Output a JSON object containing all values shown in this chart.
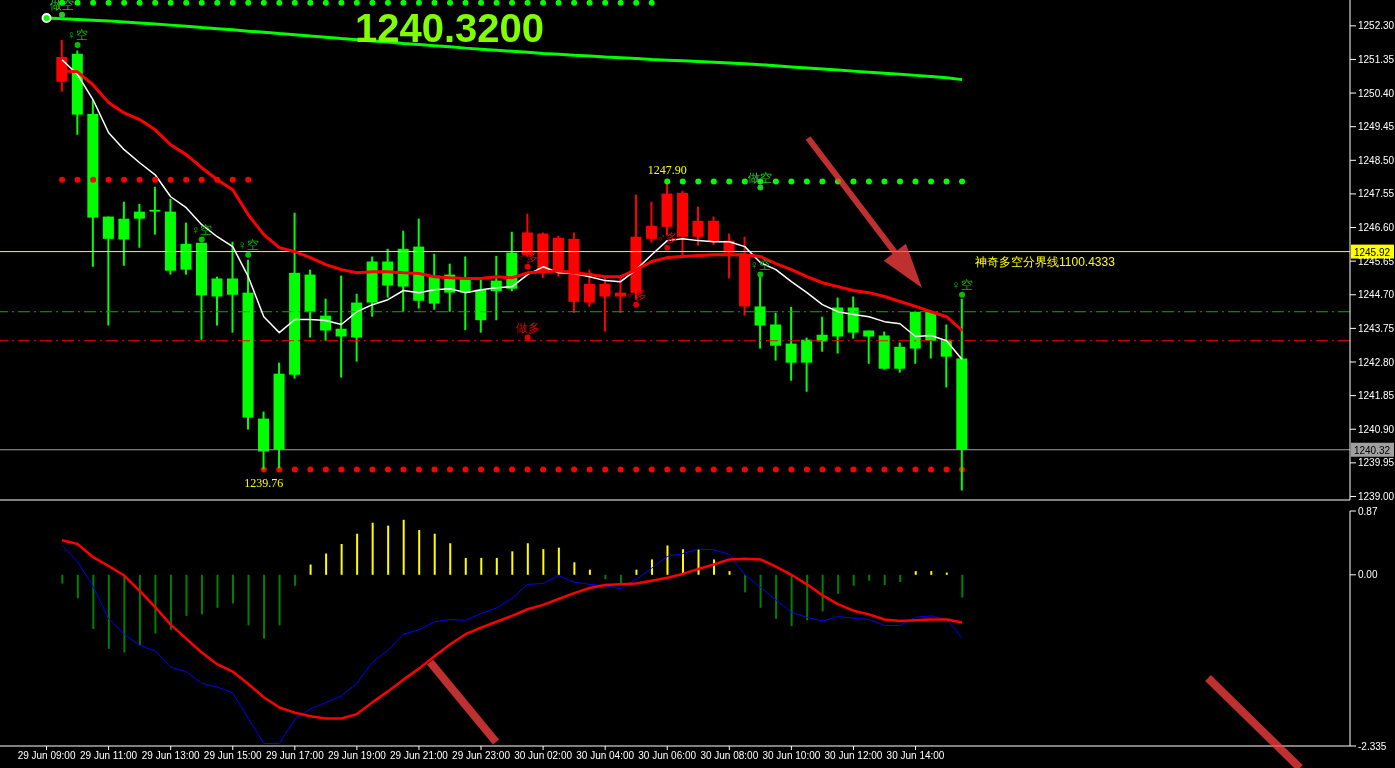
{
  "chart_data": [
    {
      "type": "candlestick",
      "title": "1240.3200",
      "categories": [
        null,
        null,
        null,
        null,
        null,
        null,
        null,
        null,
        null,
        null,
        null,
        null,
        null,
        null,
        null,
        null,
        null,
        null,
        null,
        null,
        null,
        null,
        null,
        null,
        null,
        null,
        null,
        null,
        null,
        null,
        null,
        null,
        null,
        null,
        null,
        null,
        null,
        null,
        null,
        null,
        null,
        null,
        null,
        null,
        null,
        null,
        null,
        null,
        null,
        null,
        null,
        null,
        null,
        null,
        null,
        null,
        null,
        null,
        null,
        null
      ],
      "ohlc": [
        null,
        [
          1250.72,
          1251.9,
          1250.44,
          1251.42
        ],
        [
          1251.51,
          1251.6,
          1249.22,
          1249.79
        ],
        [
          1249.81,
          1250.21,
          1245.49,
          1246.88
        ],
        [
          1246.91,
          1246.91,
          1243.83,
          1246.28
        ],
        [
          1246.85,
          1247.33,
          1245.52,
          1246.26
        ],
        [
          1247.05,
          1247.27,
          1246.03,
          1246.85
        ],
        [
          1247.1,
          1247.75,
          1246.4,
          1247.05
        ],
        [
          1247.05,
          1247.41,
          1245.27,
          1245.38
        ],
        [
          1246.14,
          1246.74,
          1245.27,
          1245.41
        ],
        [
          1246.17,
          1246.17,
          1243.43,
          1244.68
        ],
        [
          1245.16,
          1245.21,
          1243.83,
          1244.65
        ],
        [
          1245.16,
          1246.2,
          1243.63,
          1244.7
        ],
        [
          1244.76,
          1245.69,
          1240.89,
          1241.23
        ],
        [
          1241.2,
          1241.4,
          1239.76,
          1240.27
        ],
        [
          1242.47,
          1242.78,
          1239.8,
          1240.33
        ],
        [
          1245.32,
          1247.02,
          1242.33,
          1242.44
        ],
        [
          1245.27,
          1245.41,
          1243.49,
          1244.22
        ],
        [
          1244.11,
          1244.59,
          1243.4,
          1243.69
        ],
        [
          1243.74,
          1245.24,
          1242.36,
          1243.52
        ],
        [
          1244.48,
          1244.73,
          1242.81,
          1243.49
        ],
        [
          1245.64,
          1245.78,
          1244.08,
          1244.48
        ],
        [
          1245.64,
          1246.0,
          1244.62,
          1244.96
        ],
        [
          1246.0,
          1246.51,
          1244.22,
          1244.93
        ],
        [
          1246.06,
          1246.85,
          1244.31,
          1244.53
        ],
        [
          1245.24,
          1245.86,
          1244.28,
          1244.45
        ],
        [
          1245.27,
          1245.58,
          1244.22,
          1244.76
        ],
        [
          1245.18,
          1245.78,
          1243.7,
          1244.76
        ],
        [
          1244.84,
          1245.13,
          1243.63,
          1243.98
        ],
        [
          1245.1,
          1245.8,
          1243.98,
          1244.8
        ],
        [
          1245.89,
          1246.48,
          1244.8,
          1244.87
        ],
        [
          1245.83,
          1246.99,
          1245.78,
          1246.46
        ],
        [
          1245.32,
          1246.46,
          1245.18,
          1246.43
        ],
        [
          1245.35,
          1246.37,
          1245.21,
          1246.31
        ],
        [
          1244.5,
          1246.46,
          1244.19,
          1246.28
        ],
        [
          1244.48,
          1245.41,
          1244.36,
          1245.01
        ],
        [
          1244.65,
          1245.24,
          1243.66,
          1245.01
        ],
        [
          1244.65,
          1245.21,
          1244.19,
          1244.76
        ],
        [
          1244.76,
          1247.53,
          1244.56,
          1246.34
        ],
        [
          1246.28,
          1247.33,
          1246.17,
          1246.65
        ],
        [
          1246.62,
          1247.9,
          1246.37,
          1247.56
        ],
        [
          1246.34,
          1247.64,
          1245.78,
          1247.58
        ],
        [
          1246.34,
          1247.19,
          1246.09,
          1246.79
        ],
        [
          1246.2,
          1246.91,
          1246.11,
          1246.79
        ],
        [
          1245.89,
          1246.43,
          1245.16,
          1246.23
        ],
        [
          1244.37,
          1246.34,
          1244.11,
          1245.83
        ],
        [
          1244.37,
          1245.27,
          1243.18,
          1243.83
        ],
        [
          1243.86,
          1244.19,
          1242.84,
          1243.26
        ],
        [
          1243.32,
          1244.36,
          1242.27,
          1242.78
        ],
        [
          1243.43,
          1243.49,
          1241.96,
          1242.78
        ],
        [
          1243.57,
          1244.08,
          1243.09,
          1243.38
        ],
        [
          1244.34,
          1244.62,
          1243.04,
          1243.52
        ],
        [
          1244.34,
          1244.65,
          1243.46,
          1243.63
        ],
        [
          1243.69,
          1243.69,
          1242.75,
          1243.52
        ],
        [
          1243.55,
          1243.66,
          1242.59,
          1242.61
        ],
        [
          1243.23,
          1243.35,
          1242.5,
          1242.61
        ],
        [
          1244.22,
          1244.22,
          1242.75,
          1243.18
        ],
        [
          1244.22,
          1244.25,
          1242.9,
          1243.4
        ],
        [
          1243.43,
          1243.86,
          1242.08,
          1242.95
        ],
        [
          1242.9,
          1244.59,
          1239.17,
          1240.32
        ]
      ],
      "colors": [
        null,
        "#ff0000",
        "#00ff00",
        "#00ff00",
        "#00ff00",
        "#00ff00",
        "#00ff00",
        "#00ff00",
        "#00ff00",
        "#00ff00",
        "#00ff00",
        "#00ff00",
        "#00ff00",
        "#00ff00",
        "#00ff00",
        "#00ff00",
        "#00ff00",
        "#00ff00",
        "#00ff00",
        "#00ff00",
        "#00ff00",
        "#00ff00",
        "#00ff00",
        "#00ff00",
        "#00ff00",
        "#00ff00",
        "#00ff00",
        "#00ff00",
        "#00ff00",
        "#00ff00",
        "#00ff00",
        "#ff0000",
        "#ff0000",
        "#ff0000",
        "#ff0000",
        "#ff0000",
        "#ff0000",
        "#ff0000",
        "#ff0000",
        "#ff0000",
        "#ff0000",
        "#ff0000",
        "#ff0000",
        "#ff0000",
        "#ff0000",
        "#ff0000",
        "#00ff00",
        "#00ff00",
        "#00ff00",
        "#00ff00",
        "#00ff00",
        "#00ff00",
        "#00ff00",
        "#00ff00",
        "#00ff00",
        "#00ff00",
        "#00ff00",
        "#00ff00",
        "#00ff00",
        "#00ff00"
      ],
      "series": [
        {
          "type": "line",
          "color": "#00ff00",
          "values": [
            1252.52,
            1252.5,
            1252.48,
            1252.46,
            1252.44,
            1252.41,
            1252.38,
            1252.35,
            1252.32,
            1252.29,
            1252.25,
            1252.22,
            1252.19,
            1252.15,
            1252.12,
            1252.08,
            1252.05,
            1252.01,
            1251.98,
            1251.94,
            1251.91,
            1251.87,
            1251.84,
            1251.8,
            1251.77,
            1251.74,
            1251.71,
            1251.67,
            1251.64,
            1251.61,
            1251.58,
            1251.55,
            1251.52,
            1251.5,
            1251.47,
            1251.45,
            1251.42,
            1251.4,
            1251.38,
            1251.35,
            1251.33,
            1251.31,
            1251.29,
            1251.27,
            1251.25,
            1251.23,
            1251.2,
            1251.17,
            1251.14,
            1251.11,
            1251.08,
            1251.05,
            1251.02,
            1250.99,
            1250.96,
            1250.93,
            1250.9,
            1250.87,
            1250.83,
            1250.78
          ]
        },
        {
          "type": "line",
          "color": "#ffffff",
          "values": [
            null,
            1251.34,
            1250.92,
            1250.21,
            1249.28,
            1248.8,
            1248.43,
            1248.09,
            1247.47,
            1247.16,
            1246.68,
            1246.34,
            1246.06,
            1245.21,
            1244.08,
            1243.63,
            1244.0,
            1244.0,
            1243.97,
            1243.86,
            1244.22,
            1244.42,
            1244.56,
            1244.82,
            1244.76,
            1244.84,
            1244.87,
            1244.76,
            1244.84,
            1244.9,
            1244.93,
            1245.27,
            1245.49,
            1245.32,
            1245.3,
            1245.21,
            1245.1,
            1245.07,
            1245.41,
            1245.83,
            1246.23,
            1246.28,
            1246.23,
            1246.2,
            1246.2,
            1246.06,
            1245.61,
            1245.41,
            1245.07,
            1244.76,
            1244.42,
            1244.22,
            1244.14,
            1244.08,
            1243.94,
            1243.88,
            1243.52,
            1243.55,
            1243.4,
            1242.87
          ]
        },
        {
          "type": "line",
          "color": "#ff0000",
          "values": [
            null,
            1251.03,
            1251.0,
            1250.63,
            1250.13,
            1249.84,
            1249.65,
            1249.36,
            1248.94,
            1248.66,
            1248.29,
            1247.95,
            1247.67,
            1246.96,
            1246.4,
            1246.03,
            1245.92,
            1245.75,
            1245.55,
            1245.41,
            1245.32,
            1245.35,
            1245.35,
            1245.32,
            1245.3,
            1245.21,
            1245.18,
            1245.16,
            1245.16,
            1245.21,
            1245.18,
            1245.32,
            1245.35,
            1245.38,
            1245.32,
            1245.27,
            1245.21,
            1245.21,
            1245.41,
            1245.64,
            1245.75,
            1245.78,
            1245.81,
            1245.83,
            1245.83,
            1245.83,
            1245.78,
            1245.58,
            1245.41,
            1245.21,
            1245.04,
            1244.93,
            1244.82,
            1244.76,
            1244.65,
            1244.51,
            1244.37,
            1244.22,
            1244.08,
            1243.69
          ]
        },
        {
          "type": "scatter",
          "marker": "circle",
          "color": "#00ff00",
          "values": [
            null,
            1252.95,
            1252.95,
            1252.95,
            1252.95,
            1252.95,
            1252.95,
            1252.95,
            1252.95,
            1252.95,
            1252.95,
            1252.95,
            1252.95,
            1252.95,
            1252.95,
            1252.95,
            1252.95,
            1252.95,
            1252.95,
            1252.95,
            1252.95,
            1252.95,
            1252.95,
            1252.95,
            1252.95,
            1252.95,
            1252.95,
            1252.95,
            1252.95,
            1252.95,
            1252.95,
            1252.95,
            1252.95,
            1252.95,
            1252.95,
            1252.95,
            1252.95,
            1252.95,
            1252.95,
            1252.95,
            null,
            null,
            null,
            null,
            null,
            null,
            null,
            null,
            null,
            null,
            null,
            null,
            null,
            null,
            null,
            null,
            null,
            null,
            null,
            null
          ]
        },
        {
          "type": "scatter",
          "marker": "circle",
          "color": "#00ff00",
          "values": [
            null,
            null,
            null,
            null,
            null,
            null,
            null,
            null,
            null,
            null,
            null,
            null,
            null,
            null,
            null,
            null,
            null,
            null,
            null,
            null,
            null,
            null,
            null,
            null,
            null,
            null,
            null,
            null,
            null,
            null,
            null,
            null,
            null,
            null,
            null,
            null,
            null,
            null,
            null,
            null,
            1247.9,
            1247.9,
            1247.9,
            1247.9,
            1247.9,
            1247.9,
            1247.9,
            1247.9,
            1247.9,
            1247.9,
            1247.9,
            1247.9,
            1247.9,
            1247.9,
            1247.9,
            1247.9,
            1247.9,
            1247.9,
            1247.9,
            1247.9
          ],
          "value_labels": [
            null,
            null,
            null,
            null,
            null,
            null,
            null,
            null,
            null,
            null,
            null,
            null,
            null,
            null,
            null,
            null,
            null,
            null,
            null,
            null,
            null,
            null,
            null,
            null,
            null,
            null,
            null,
            null,
            null,
            null,
            null,
            null,
            null,
            null,
            null,
            null,
            null,
            null,
            null,
            null,
            "1247.90",
            null,
            null,
            null,
            null,
            null,
            null,
            null,
            null,
            null,
            null,
            null,
            null,
            null,
            null,
            null,
            null,
            null,
            null,
            null
          ]
        },
        {
          "type": "scatter",
          "marker": "circle",
          "color": "#ff0000",
          "values": [
            null,
            1247.95,
            1247.95,
            1247.95,
            1247.95,
            1247.95,
            1247.95,
            1247.95,
            1247.95,
            1247.95,
            1247.95,
            1247.95,
            1247.95,
            1247.95,
            null,
            null,
            null,
            null,
            null,
            null,
            null,
            null,
            null,
            null,
            null,
            null,
            null,
            null,
            null,
            null,
            null,
            null,
            null,
            null,
            null,
            null,
            null,
            null,
            null,
            null,
            null,
            null,
            null,
            null,
            null,
            null,
            null,
            null,
            null,
            null,
            null,
            null,
            null,
            null,
            null,
            null,
            null,
            null,
            null,
            null
          ]
        },
        {
          "type": "scatter",
          "marker": "circle",
          "color": "#ff0000",
          "values": [
            null,
            null,
            null,
            null,
            null,
            null,
            null,
            null,
            null,
            null,
            null,
            null,
            null,
            null,
            1239.76,
            1239.76,
            1239.76,
            1239.76,
            1239.76,
            1239.76,
            1239.76,
            1239.76,
            1239.76,
            1239.76,
            1239.76,
            1239.76,
            1239.76,
            1239.76,
            1239.76,
            1239.76,
            1239.76,
            1239.76,
            1239.76,
            1239.76,
            1239.76,
            1239.76,
            1239.76,
            1239.76,
            1239.76,
            1239.76,
            1239.76,
            1239.76,
            1239.76,
            1239.76,
            1239.76,
            1239.76,
            1239.76,
            1239.76,
            1239.76,
            1239.76,
            1239.76,
            1239.76,
            1239.76,
            1239.76,
            1239.76,
            1239.76,
            1239.76,
            1239.76,
            1239.76,
            1239.76
          ],
          "value_labels": [
            null,
            null,
            null,
            null,
            null,
            null,
            null,
            null,
            null,
            null,
            null,
            null,
            null,
            null,
            "1239.76",
            null,
            null,
            null,
            null,
            null,
            null,
            null,
            null,
            null,
            null,
            null,
            null,
            null,
            null,
            null,
            null,
            null,
            null,
            null,
            null,
            null,
            null,
            null,
            null,
            null,
            null,
            null,
            null,
            null,
            null,
            null,
            null,
            null,
            null,
            null,
            null,
            null,
            null,
            null,
            null,
            null,
            null,
            null,
            null,
            null
          ]
        },
        {
          "type": "scatter",
          "marker": "circle",
          "color": "#00c000",
          "values": [
            null,
            null,
            1251.76,
            null,
            null,
            null,
            null,
            null,
            null,
            null,
            1246.26,
            null,
            null,
            1245.83,
            null,
            null,
            null,
            null,
            null,
            null,
            null,
            null,
            null,
            null,
            null,
            null,
            null,
            null,
            null,
            null,
            null,
            null,
            null,
            null,
            null,
            null,
            null,
            null,
            null,
            null,
            null,
            null,
            null,
            null,
            null,
            null,
            1245.27,
            null,
            null,
            null,
            null,
            null,
            null,
            null,
            null,
            null,
            null,
            null,
            null,
            1244.7
          ],
          "value_labels": [
            null,
            null,
            "♀空",
            null,
            null,
            null,
            null,
            null,
            null,
            null,
            "♀空",
            null,
            null,
            "♀空",
            null,
            null,
            null,
            null,
            null,
            null,
            null,
            null,
            null,
            null,
            null,
            null,
            null,
            null,
            null,
            null,
            null,
            null,
            null,
            null,
            null,
            null,
            null,
            null,
            null,
            null,
            null,
            null,
            null,
            null,
            null,
            null,
            "♀空",
            null,
            null,
            null,
            null,
            null,
            null,
            null,
            null,
            null,
            null,
            null,
            null,
            "♀空"
          ]
        },
        {
          "type": "scatter",
          "marker": "circle",
          "color": "#20d020",
          "values": [
            null,
            1252.61,
            null,
            null,
            null,
            null,
            null,
            null,
            null,
            null,
            null,
            null,
            null,
            null,
            null,
            null,
            null,
            null,
            null,
            null,
            null,
            null,
            null,
            null,
            null,
            null,
            null,
            null,
            null,
            null,
            null,
            null,
            null,
            null,
            null,
            null,
            null,
            null,
            null,
            null,
            null,
            null,
            null,
            null,
            null,
            null,
            1247.73,
            null,
            null,
            null,
            null,
            null,
            null,
            null,
            null,
            null,
            null,
            null,
            null,
            null
          ],
          "value_labels": [
            null,
            "做空",
            null,
            null,
            null,
            null,
            null,
            null,
            null,
            null,
            null,
            null,
            null,
            null,
            null,
            null,
            null,
            null,
            null,
            null,
            null,
            null,
            null,
            null,
            null,
            null,
            null,
            null,
            null,
            null,
            null,
            null,
            null,
            null,
            null,
            null,
            null,
            null,
            null,
            null,
            null,
            null,
            null,
            null,
            null,
            null,
            "做空",
            null,
            null,
            null,
            null,
            null,
            null,
            null,
            null,
            null,
            null,
            null,
            null,
            null
          ]
        },
        {
          "type": "scatter",
          "marker": "circle",
          "color": "#e00000",
          "values": [
            null,
            null,
            null,
            null,
            null,
            null,
            null,
            null,
            null,
            null,
            null,
            null,
            null,
            null,
            null,
            null,
            null,
            null,
            null,
            null,
            null,
            null,
            null,
            null,
            null,
            null,
            null,
            null,
            null,
            null,
            null,
            1245.49,
            null,
            null,
            null,
            null,
            null,
            null,
            1244.42,
            null,
            1246.03,
            null,
            null,
            null,
            null,
            null,
            null,
            null,
            null,
            null,
            null,
            null,
            null,
            null,
            null,
            null,
            null,
            null,
            null,
            null
          ],
          "value_labels": [
            null,
            null,
            null,
            null,
            null,
            null,
            null,
            null,
            null,
            null,
            null,
            null,
            null,
            null,
            null,
            null,
            null,
            null,
            null,
            null,
            null,
            null,
            null,
            null,
            null,
            null,
            null,
            null,
            null,
            null,
            null,
            "♂多",
            null,
            null,
            null,
            null,
            null,
            null,
            "♂多",
            null,
            "♂多",
            null,
            null,
            null,
            null,
            null,
            null,
            null,
            null,
            null,
            null,
            null,
            null,
            null,
            null,
            null,
            null,
            null,
            null,
            null
          ]
        },
        {
          "type": "scatter",
          "marker": "circle",
          "color": "#e00000",
          "values": [
            null,
            null,
            null,
            null,
            null,
            null,
            null,
            null,
            null,
            null,
            null,
            null,
            null,
            null,
            null,
            null,
            null,
            null,
            null,
            null,
            null,
            null,
            null,
            null,
            null,
            null,
            null,
            null,
            null,
            null,
            null,
            1243.49,
            null,
            null,
            null,
            null,
            null,
            null,
            null,
            null,
            null,
            null,
            null,
            null,
            null,
            null,
            null,
            null,
            null,
            null,
            null,
            null,
            null,
            null,
            null,
            null,
            null,
            null,
            null,
            null
          ],
          "value_labels": [
            null,
            null,
            null,
            null,
            null,
            null,
            null,
            null,
            null,
            null,
            null,
            null,
            null,
            null,
            null,
            null,
            null,
            null,
            null,
            null,
            null,
            null,
            null,
            null,
            null,
            null,
            null,
            null,
            null,
            null,
            null,
            "做多",
            null,
            null,
            null,
            null,
            null,
            null,
            null,
            null,
            null,
            null,
            null,
            null,
            null,
            null,
            null,
            null,
            null,
            null,
            null,
            null,
            null,
            null,
            null,
            null,
            null,
            null,
            null,
            null
          ]
        }
      ],
      "ylim": [
        1238.9,
        1253.03
      ],
      "yticks": [
        {
          "value": 1252.3,
          "label": "1252.30"
        },
        {
          "value": 1251.35,
          "label": "1251.35"
        },
        {
          "value": 1250.4,
          "label": "1250.40"
        },
        {
          "value": 1249.45,
          "label": "1249.45"
        },
        {
          "value": 1248.5,
          "label": "1248.50"
        },
        {
          "value": 1247.55,
          "label": "1247.55"
        },
        {
          "value": 1246.6,
          "label": "1246.60"
        },
        {
          "value": 1245.65,
          "label": "1245.65"
        },
        {
          "value": 1244.7,
          "label": "1244.70"
        },
        {
          "value": 1243.75,
          "label": "1243.75"
        },
        {
          "value": 1242.8,
          "label": "1242.80"
        },
        {
          "value": 1241.85,
          "label": "1241.85"
        },
        {
          "value": 1240.9,
          "label": "1240.90"
        },
        {
          "value": 1239.95,
          "label": "1239.95"
        },
        {
          "value": 1239,
          "label": "1239.00"
        }
      ],
      "ref_lines": [
        {
          "axis": "y",
          "value": 1245.92,
          "label": "1245.92",
          "color": "#ffff00",
          "line_style": "solid"
        },
        {
          "axis": "y",
          "value": 1240.32,
          "label": "1240.32",
          "color": "#a0a0a0",
          "line_style": "solid"
        },
        {
          "axis": "y",
          "value": 1244.22,
          "color": "#00b000",
          "line_style": "dashed"
        },
        {
          "axis": "y",
          "value": 1243.4,
          "color": "#ff0000",
          "line_style": "dashed"
        }
      ],
      "annotations": [
        {
          "text": "神奇多空分界线1100.4333",
          "y": 1245.92
        }
      ]
    },
    {
      "type": "bar",
      "categories": [
        "29 Jun 09:00",
        null,
        null,
        null,
        "29 Jun 11:00",
        null,
        null,
        null,
        "29 Jun 13:00",
        null,
        null,
        null,
        "29 Jun 15:00",
        null,
        null,
        null,
        "29 Jun 17:00",
        null,
        null,
        null,
        "29 Jun 19:00",
        null,
        null,
        null,
        "29 Jun 21:00",
        null,
        null,
        null,
        "29 Jun 23:00",
        null,
        null,
        null,
        "30 Jun 02:00",
        null,
        null,
        null,
        "30 Jun 04:00",
        null,
        null,
        null,
        "30 Jun 06:00",
        null,
        null,
        null,
        "30 Jun 08:00",
        null,
        null,
        null,
        "30 Jun 10:00",
        null,
        null,
        null,
        "30 Jun 12:00",
        null,
        null,
        null,
        "30 Jun 14:00",
        null,
        null,
        null
      ],
      "series": [
        {
          "type": "bar",
          "values": [
            null,
            -0.12,
            -0.32,
            -0.74,
            -1.01,
            -1.06,
            -0.96,
            -0.8,
            -0.75,
            -0.56,
            -0.54,
            -0.45,
            -0.39,
            -0.69,
            -0.87,
            -0.69,
            -0.15,
            0.14,
            0.29,
            0.42,
            0.56,
            0.71,
            0.67,
            0.75,
            0.61,
            0.56,
            0.43,
            0.23,
            0.23,
            0.23,
            0.32,
            0.43,
            0.35,
            0.37,
            0.17,
            0.07,
            -0.06,
            -0.12,
            0.07,
            0.21,
            0.4,
            0.35,
            0.35,
            0.21,
            0.05,
            -0.24,
            -0.45,
            -0.6,
            -0.7,
            -0.62,
            -0.5,
            -0.26,
            -0.15,
            -0.08,
            -0.14,
            -0.1,
            0.05,
            0.05,
            0.03,
            -0.31
          ],
          "colors": [
            null,
            "#008000",
            "#008000",
            "#008000",
            "#008000",
            "#008000",
            "#008000",
            "#008000",
            "#008000",
            "#008000",
            "#008000",
            "#008000",
            "#008000",
            "#008000",
            "#008000",
            "#008000",
            "#008000",
            "#ffff00",
            "#ffff00",
            "#ffff00",
            "#ffff00",
            "#ffff00",
            "#ffff00",
            "#ffff00",
            "#ffff00",
            "#ffff00",
            "#ffff00",
            "#ffff00",
            "#ffff00",
            "#ffff00",
            "#ffff00",
            "#ffff00",
            "#ffff00",
            "#ffff00",
            "#ffff00",
            "#ffff00",
            "#008000",
            "#008000",
            "#ffff00",
            "#ffff00",
            "#ffff00",
            "#ffff00",
            "#ffff00",
            "#ffff00",
            "#ffff00",
            "#008000",
            "#008000",
            "#008000",
            "#008000",
            "#008000",
            "#008000",
            "#008000",
            "#008000",
            "#008000",
            "#008000",
            "#008000",
            "#ffff00",
            "#ffff00",
            "#ffff00",
            "#008000"
          ]
        },
        {
          "type": "line",
          "color": "#0000ff",
          "values": [
            null,
            0.4,
            0.18,
            -0.16,
            -0.6,
            -0.81,
            -0.96,
            -1.04,
            -1.26,
            -1.32,
            -1.48,
            -1.53,
            -1.61,
            -1.96,
            -2.3,
            -2.3,
            -1.97,
            -1.83,
            -1.74,
            -1.65,
            -1.48,
            -1.19,
            -1.03,
            -0.81,
            -0.75,
            -0.64,
            -0.61,
            -0.62,
            -0.53,
            -0.45,
            -0.32,
            -0.13,
            -0.12,
            -0.01,
            -0.1,
            -0.13,
            -0.15,
            -0.19,
            -0.06,
            0.09,
            0.25,
            0.29,
            0.35,
            0.34,
            0.28,
            0.0,
            -0.17,
            -0.34,
            -0.51,
            -0.58,
            -0.63,
            -0.57,
            -0.59,
            -0.61,
            -0.69,
            -0.69,
            -0.58,
            -0.56,
            -0.61,
            -0.86
          ]
        },
        {
          "type": "line",
          "color": "#ff0000",
          "values": [
            null,
            0.47,
            0.42,
            0.24,
            0.12,
            -0.01,
            -0.22,
            -0.44,
            -0.68,
            -0.87,
            -1.06,
            -1.22,
            -1.32,
            -1.49,
            -1.67,
            -1.81,
            -1.88,
            -1.93,
            -1.96,
            -1.96,
            -1.9,
            -1.74,
            -1.59,
            -1.43,
            -1.28,
            -1.11,
            -0.95,
            -0.81,
            -0.72,
            -0.64,
            -0.56,
            -0.47,
            -0.41,
            -0.33,
            -0.25,
            -0.18,
            -0.14,
            -0.13,
            -0.12,
            -0.08,
            -0.04,
            0.01,
            0.08,
            0.14,
            0.21,
            0.22,
            0.21,
            0.11,
            0.0,
            -0.13,
            -0.28,
            -0.4,
            -0.49,
            -0.54,
            -0.61,
            -0.63,
            -0.62,
            -0.61,
            -0.61,
            -0.65
          ]
        }
      ],
      "ylim": [
        -2.335,
        0.87
      ],
      "yticks": [
        {
          "value": 0.87,
          "label": "0.87"
        },
        {
          "value": 0,
          "label": "0.00"
        },
        {
          "value": -2.335,
          "label": "-2.335"
        }
      ]
    }
  ]
}
